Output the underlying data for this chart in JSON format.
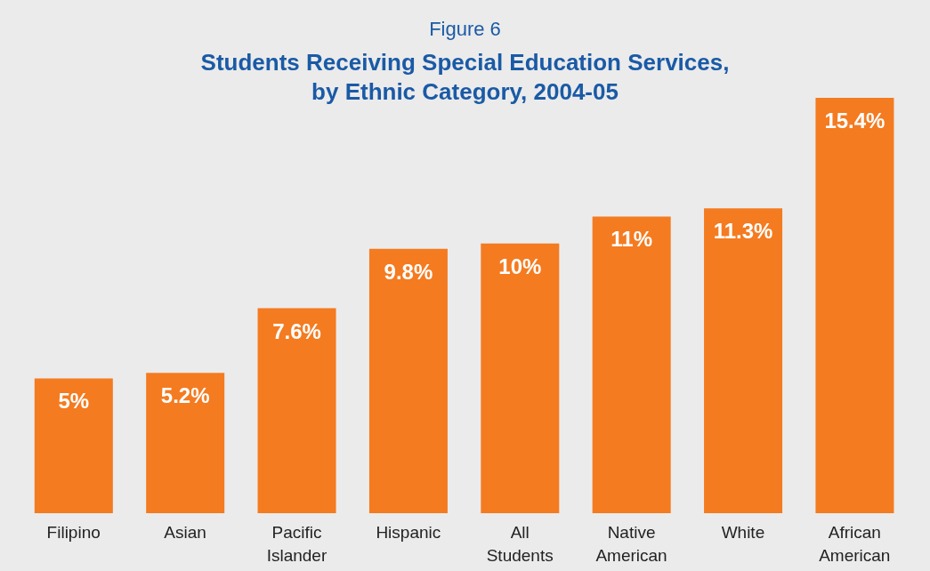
{
  "chart_data": {
    "type": "bar",
    "subtitle": "Figure 6",
    "title": "Students Receiving Special Education Services, by Ethnic Category, 2004-05",
    "categories": [
      "Filipino",
      "Asian",
      "Pacific Islander",
      "Hispanic",
      "All Students",
      "Native American",
      "White",
      "African American"
    ],
    "values": [
      5,
      5.2,
      7.6,
      9.8,
      10,
      11,
      11.3,
      15.4
    ],
    "value_labels": [
      "5%",
      "5.2%",
      "7.6%",
      "9.8%",
      "10%",
      "11%",
      "11.3%",
      "15.4%"
    ],
    "color": "#f47b20"
  }
}
